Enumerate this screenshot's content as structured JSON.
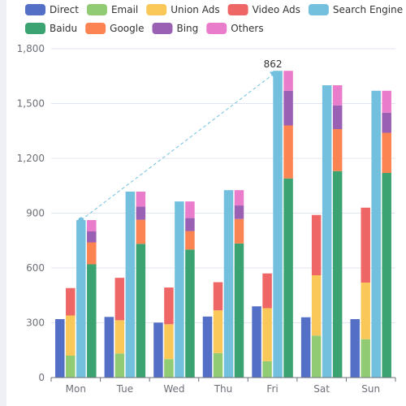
{
  "chart_data": {
    "type": "bar",
    "categories": [
      "Mon",
      "Tue",
      "Wed",
      "Thu",
      "Fri",
      "Sat",
      "Sun"
    ],
    "ylim": [
      0,
      1800
    ],
    "yticks": [
      0,
      300,
      600,
      900,
      1200,
      1500,
      1800
    ],
    "ytick_labels": [
      "0",
      "300",
      "600",
      "900",
      "1,200",
      "1,500",
      "1,800"
    ],
    "grid": true,
    "legend_position": "top",
    "series": [
      {
        "name": "Direct",
        "stack": "direct",
        "color": "#5470c6",
        "values": [
          320,
          332,
          301,
          334,
          390,
          330,
          320
        ]
      },
      {
        "name": "Email",
        "stack": "ad",
        "color": "#91cc75",
        "values": [
          120,
          132,
          101,
          134,
          90,
          230,
          210
        ]
      },
      {
        "name": "Union Ads",
        "stack": "ad",
        "color": "#fac858",
        "values": [
          220,
          182,
          191,
          234,
          290,
          330,
          310
        ]
      },
      {
        "name": "Video Ads",
        "stack": "ad",
        "color": "#ee6666",
        "values": [
          150,
          232,
          201,
          154,
          190,
          330,
          410
        ]
      },
      {
        "name": "Search Engine",
        "stack": "search",
        "color": "#73c0de",
        "values": [
          862,
          1018,
          964,
          1026,
          1679,
          1600,
          1570
        ]
      },
      {
        "name": "Baidu",
        "stack": "engine",
        "color": "#3ba272",
        "values": [
          620,
          732,
          701,
          734,
          1090,
          1130,
          1120
        ]
      },
      {
        "name": "Google",
        "stack": "engine",
        "color": "#fc8452",
        "values": [
          120,
          132,
          101,
          134,
          290,
          230,
          220
        ]
      },
      {
        "name": "Bing",
        "stack": "engine",
        "color": "#9a60b4",
        "values": [
          60,
          72,
          71,
          74,
          190,
          130,
          110
        ]
      },
      {
        "name": "Others",
        "stack": "engine",
        "color": "#ea7ccc",
        "values": [
          62,
          82,
          91,
          84,
          109,
          110,
          120
        ]
      }
    ],
    "annotations": [
      {
        "type": "arrow",
        "series": "Search Engine",
        "from_category": "Mon",
        "to_category": "Fri",
        "label": "862"
      }
    ]
  }
}
